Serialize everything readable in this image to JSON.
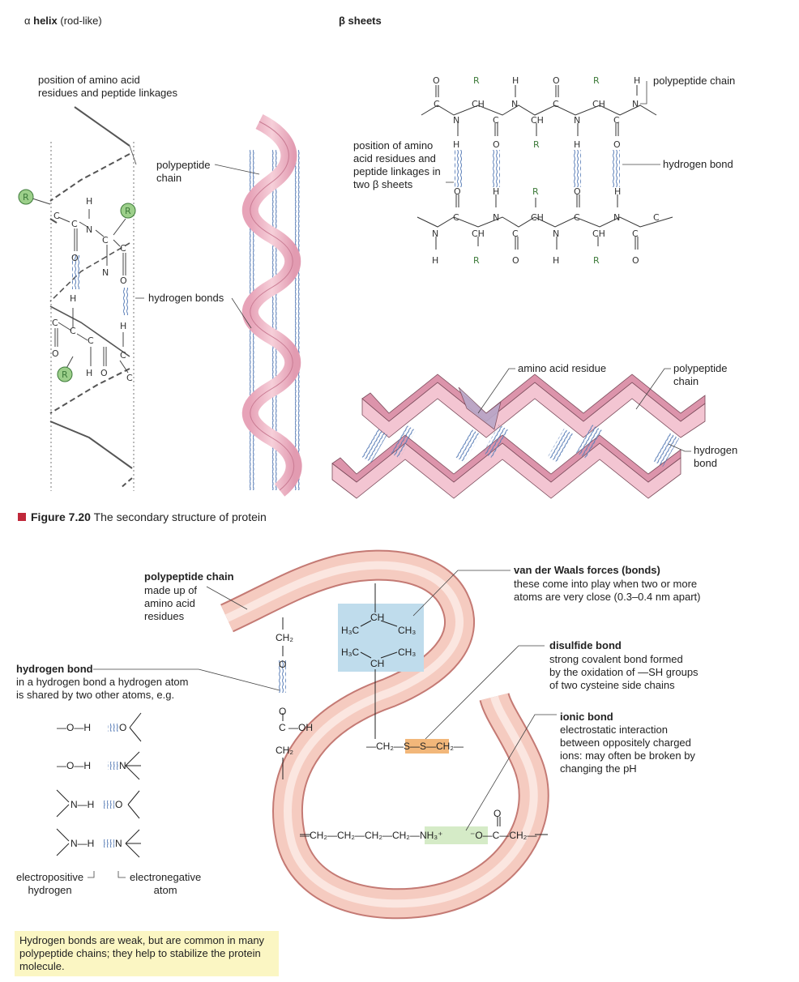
{
  "alpha": {
    "title_symbol": "α",
    "title_bold": "helix",
    "title_rest": "(rod-like)",
    "position_label": "position of amino acid\nresidues and peptide linkages",
    "polypeptide_label": "polypeptide\nchain",
    "hbonds_label": "hydrogen bonds",
    "atoms": {
      "R": "R",
      "C": "C",
      "N": "N",
      "H": "H",
      "O": "O"
    }
  },
  "beta": {
    "title": "β sheets",
    "polypeptide_label": "polypeptide chain",
    "hbond_label": "hydrogen bond",
    "position_label": "position of amino\nacid residues and\npeptide linkages in\ntwo β sheets",
    "residue_label": "amino acid residue",
    "chain_label": "polypeptide\nchain",
    "hbond2_label": "hydrogen\nbond",
    "atoms": {
      "R": "R",
      "CH": "CH",
      "C": "C",
      "N": "N",
      "H": "H",
      "O": "O"
    }
  },
  "figure_caption": {
    "number": "Figure 7.20",
    "text": "The secondary structure of protein"
  },
  "tertiary": {
    "polypeptide_title": "polypeptide chain",
    "polypeptide_desc": "made up of\namino acid\nresidues",
    "hbond_title": "hydrogen bond",
    "hbond_desc": "in a hydrogen bond a hydrogen atom\nis shared by two other atoms, e.g.",
    "vdw_title": "van der Waals forces (bonds)",
    "vdw_desc": "these come into play when two or more\natoms are very close (0.3–0.4 nm apart)",
    "disulfide_title": "disulfide bond",
    "disulfide_desc": "strong covalent bond formed\nby the oxidation of —SH groups\nof two cysteine side chains",
    "ionic_title": "ionic bond",
    "ionic_desc": "electrostatic interaction\nbetween oppositely charged\nions: may often be broken by\nchanging the pH",
    "electropositive_label": "electropositive\nhydrogen",
    "electronegative_label": "electronegative\natom",
    "note": "Hydrogen bonds are weak, but are common in many\npolypeptide chains; they help to stabilize the protein\nmolecule.",
    "chem": {
      "ch2": "CH₂",
      "o": "O",
      "c": "C",
      "oh": "—OH",
      "ch": "CH",
      "h3c": "H₃C",
      "ch3": "CH₃",
      "disulfide": "—CH₂—S—S—CH₂—",
      "ionic_left": "—CH₂—CH₂—CH₂—CH₂—NH₃⁺",
      "ionic_right": "⁻O—C—CH₂—",
      "ex1": "—O—H",
      "ex2": "—O—H",
      "ex3": "N—H",
      "ex4": "N—H",
      "ex_o": "O",
      "ex_n": "N"
    }
  },
  "colors": {
    "ribbon_pink": "#efb8c6",
    "ribbon_dark": "#d98aa2",
    "backbone_pink": "#f4c2b4",
    "r_green": "#9ccf8a",
    "r_text": "#3d7a3a",
    "hbond_blue": "#5b7fb8",
    "vdw_box": "#bfdcec",
    "disulfide_box": "#f2b77a",
    "ionic_box": "#d5ebc7",
    "caption_red": "#c0283a",
    "note_yellow": "#fbf6c3",
    "residue_purple": "#b9a8c9"
  }
}
